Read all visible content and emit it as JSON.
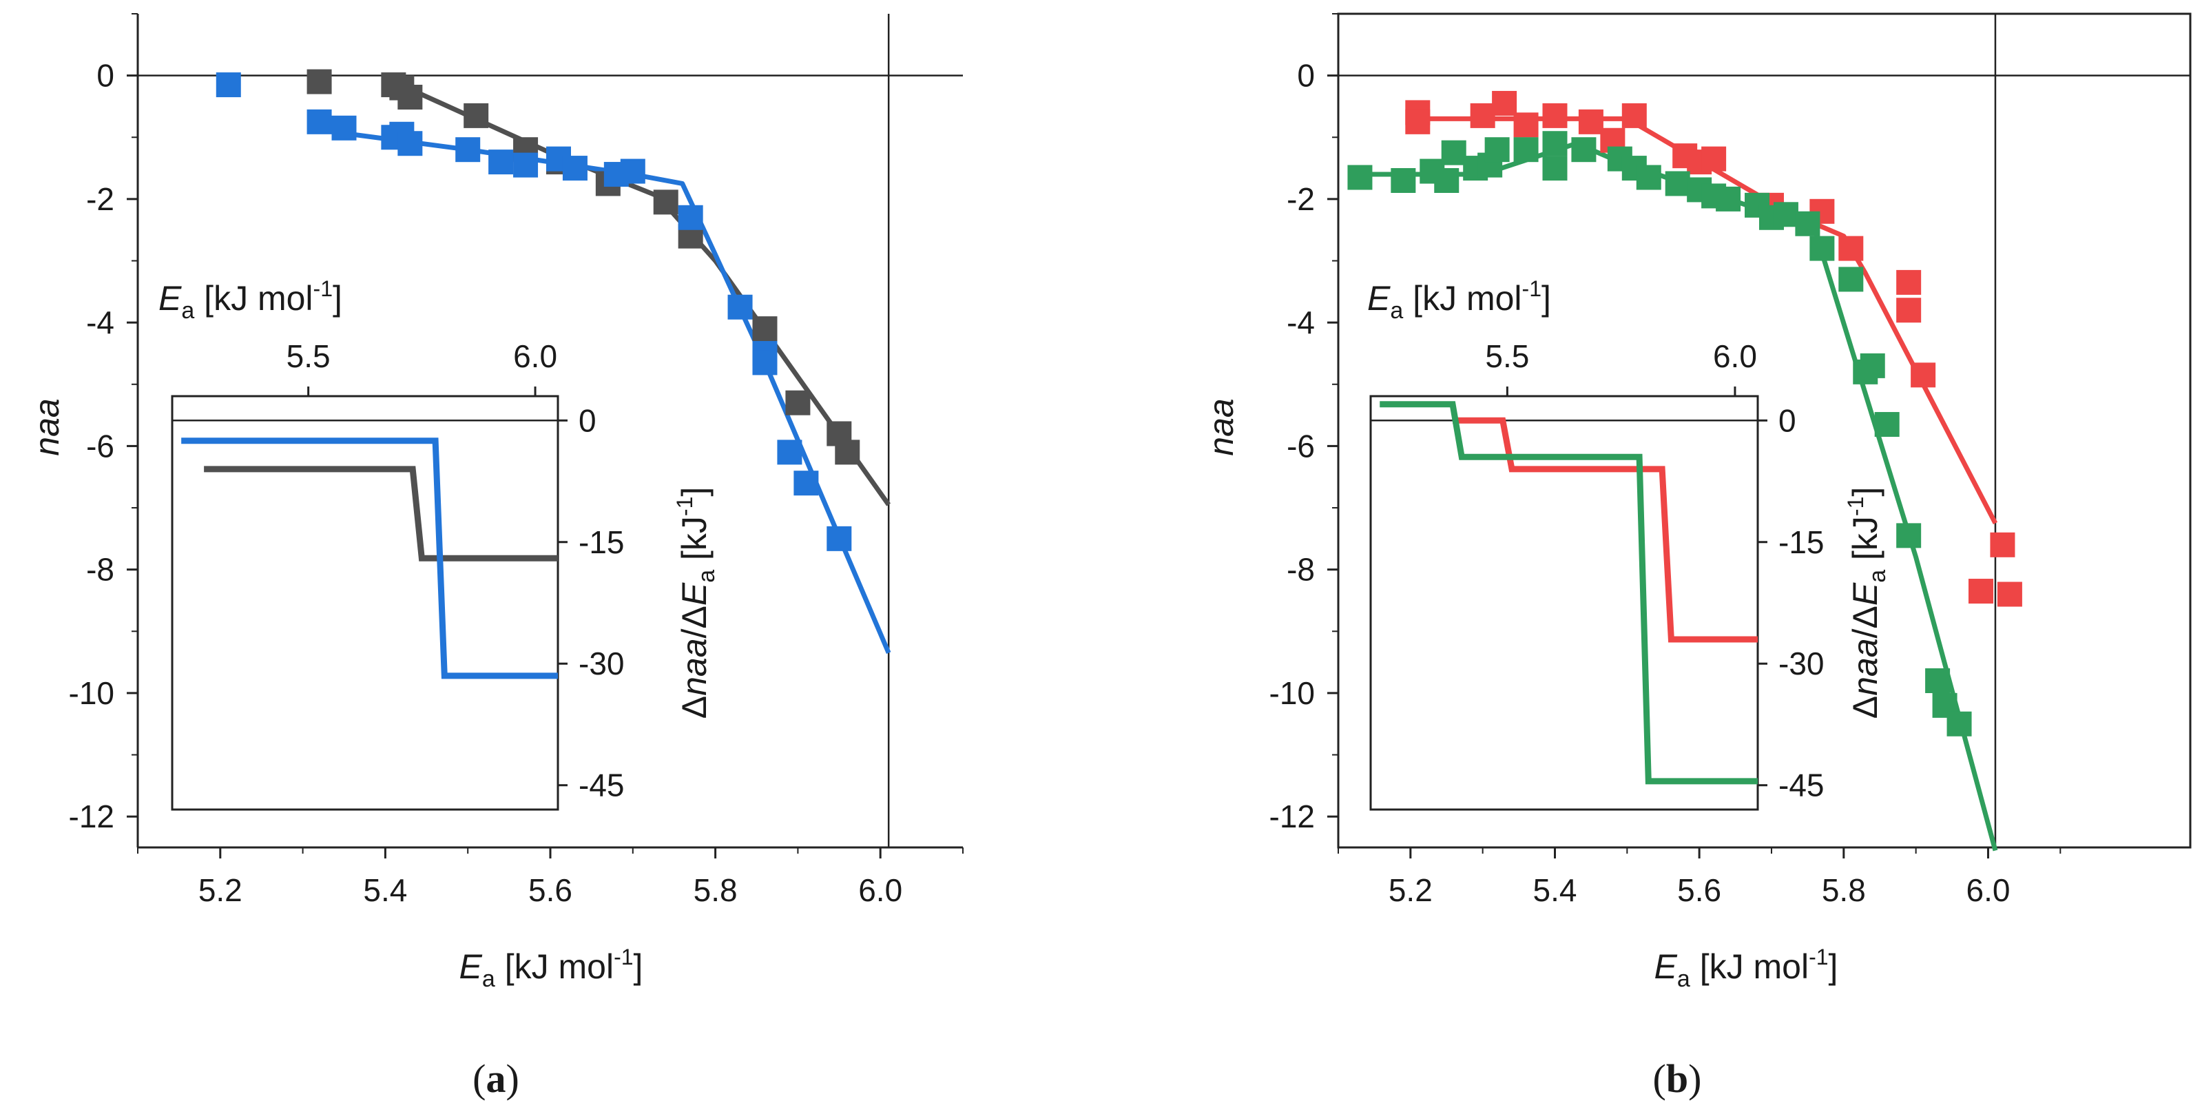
{
  "panels": [
    {
      "caption": "a",
      "chart_data": {
        "type": "scatter",
        "xlabel": "E_a [kJ mol^-1]",
        "ylabel": "naa",
        "xlim": [
          5.1,
          6.1
        ],
        "ylim": [
          -12.5,
          1.0
        ],
        "xticks": [
          5.2,
          5.4,
          5.6,
          5.8,
          6.0
        ],
        "yticks": [
          0,
          -2,
          -4,
          -6,
          -8,
          -10,
          -12
        ],
        "vline": 6.01,
        "hline": 0,
        "series": [
          {
            "name": "dark",
            "color": "#505050",
            "points": [
              [
                5.32,
                -0.1
              ],
              [
                5.41,
                -0.15
              ],
              [
                5.42,
                -0.2
              ],
              [
                5.43,
                -0.35
              ],
              [
                5.51,
                -0.65
              ],
              [
                5.57,
                -1.2
              ],
              [
                5.61,
                -1.4
              ],
              [
                5.67,
                -1.75
              ],
              [
                5.74,
                -2.05
              ],
              [
                5.77,
                -2.6
              ],
              [
                5.86,
                -4.1
              ],
              [
                5.9,
                -5.3
              ],
              [
                5.95,
                -5.8
              ],
              [
                5.96,
                -6.1
              ]
            ],
            "fit": [
              [
                5.41,
                -0.1
              ],
              [
                5.6,
                -1.25
              ],
              [
                5.73,
                -1.95
              ],
              [
                5.8,
                -3.0
              ],
              [
                6.01,
                -6.95
              ]
            ]
          },
          {
            "name": "blue",
            "color": "#2275d8",
            "points": [
              [
                5.21,
                -0.15
              ],
              [
                5.32,
                -0.75
              ],
              [
                5.35,
                -0.85
              ],
              [
                5.41,
                -1.0
              ],
              [
                5.42,
                -0.95
              ],
              [
                5.43,
                -1.1
              ],
              [
                5.5,
                -1.2
              ],
              [
                5.54,
                -1.4
              ],
              [
                5.57,
                -1.45
              ],
              [
                5.61,
                -1.35
              ],
              [
                5.63,
                -1.5
              ],
              [
                5.68,
                -1.6
              ],
              [
                5.7,
                -1.55
              ],
              [
                5.77,
                -2.3
              ],
              [
                5.83,
                -3.75
              ],
              [
                5.86,
                -4.5
              ],
              [
                5.86,
                -4.65
              ],
              [
                5.89,
                -6.1
              ],
              [
                5.91,
                -6.6
              ],
              [
                5.95,
                -7.5
              ]
            ],
            "fit": [
              [
                5.33,
                -0.9
              ],
              [
                5.5,
                -1.2
              ],
              [
                5.7,
                -1.6
              ],
              [
                5.76,
                -1.75
              ],
              [
                5.8,
                -2.9
              ],
              [
                5.86,
                -4.65
              ],
              [
                6.01,
                -9.35
              ]
            ]
          }
        ],
        "inset": {
          "top_label": "E_a [kJ mol^-1]",
          "right_label": "Δnaa/ΔE_a [kJ^-1]",
          "xlim": [
            5.2,
            6.05
          ],
          "ylim": [
            -48,
            3
          ],
          "xticks": [
            5.5,
            6.0
          ],
          "yticks": [
            0,
            -15,
            -30,
            -45
          ],
          "hline": 0,
          "steps": [
            {
              "color": "#505050",
              "points": [
                [
                  5.27,
                  -6
                ],
                [
                  5.73,
                  -6
                ],
                [
                  5.75,
                  -17
                ],
                [
                  6.05,
                  -17
                ]
              ]
            },
            {
              "color": "#2275d8",
              "points": [
                [
                  5.22,
                  -2.5
                ],
                [
                  5.78,
                  -2.5
                ],
                [
                  5.8,
                  -31.5
                ],
                [
                  6.05,
                  -31.5
                ]
              ]
            }
          ]
        }
      }
    },
    {
      "caption": "b",
      "chart_data": {
        "type": "scatter",
        "xlabel": "E_a [kJ mol^-1]",
        "ylabel": "naa",
        "xlim": [
          5.1,
          6.28
        ],
        "ylim": [
          -12.5,
          1.0
        ],
        "xticks": [
          5.2,
          5.4,
          5.6,
          5.8,
          6.0
        ],
        "yticks": [
          0,
          -2,
          -4,
          -6,
          -8,
          -10,
          -12
        ],
        "vline": 6.01,
        "hline": 0,
        "series": [
          {
            "name": "red",
            "color": "#ee4545",
            "points": [
              [
                5.21,
                -0.6
              ],
              [
                5.21,
                -0.75
              ],
              [
                5.3,
                -0.65
              ],
              [
                5.33,
                -0.45
              ],
              [
                5.36,
                -0.8
              ],
              [
                5.4,
                -0.65
              ],
              [
                5.45,
                -0.75
              ],
              [
                5.48,
                -1.05
              ],
              [
                5.51,
                -0.65
              ],
              [
                5.58,
                -1.3
              ],
              [
                5.6,
                -1.4
              ],
              [
                5.62,
                -1.35
              ],
              [
                5.7,
                -2.1
              ],
              [
                5.77,
                -2.2
              ],
              [
                5.81,
                -2.8
              ],
              [
                5.89,
                -3.35
              ],
              [
                5.89,
                -3.8
              ],
              [
                5.91,
                -4.85
              ],
              [
                6.02,
                -7.6
              ],
              [
                5.99,
                -8.35
              ],
              [
                6.03,
                -8.4
              ]
            ],
            "fit": [
              [
                5.21,
                -0.7
              ],
              [
                5.5,
                -0.7
              ],
              [
                5.72,
                -2.2
              ],
              [
                5.8,
                -2.6
              ],
              [
                5.83,
                -3.2
              ],
              [
                6.01,
                -7.25
              ]
            ]
          },
          {
            "name": "green",
            "color": "#2f9e5c",
            "points": [
              [
                5.13,
                -1.65
              ],
              [
                5.19,
                -1.7
              ],
              [
                5.23,
                -1.55
              ],
              [
                5.25,
                -1.7
              ],
              [
                5.26,
                -1.25
              ],
              [
                5.29,
                -1.5
              ],
              [
                5.31,
                -1.45
              ],
              [
                5.32,
                -1.2
              ],
              [
                5.36,
                -1.2
              ],
              [
                5.4,
                -1.1
              ],
              [
                5.4,
                -1.5
              ],
              [
                5.44,
                -1.2
              ],
              [
                5.49,
                -1.35
              ],
              [
                5.51,
                -1.5
              ],
              [
                5.53,
                -1.65
              ],
              [
                5.57,
                -1.75
              ],
              [
                5.6,
                -1.85
              ],
              [
                5.62,
                -1.95
              ],
              [
                5.64,
                -2.0
              ],
              [
                5.68,
                -2.1
              ],
              [
                5.7,
                -2.3
              ],
              [
                5.72,
                -2.25
              ],
              [
                5.75,
                -2.4
              ],
              [
                5.77,
                -2.8
              ],
              [
                5.81,
                -3.3
              ],
              [
                5.83,
                -4.8
              ],
              [
                5.84,
                -4.7
              ],
              [
                5.86,
                -5.65
              ],
              [
                5.89,
                -7.45
              ],
              [
                5.93,
                -9.8
              ],
              [
                5.94,
                -10.2
              ],
              [
                5.96,
                -10.5
              ]
            ],
            "fit": [
              [
                5.13,
                -1.6
              ],
              [
                5.3,
                -1.6
              ],
              [
                5.43,
                -1.1
              ],
              [
                5.48,
                -1.35
              ],
              [
                5.74,
                -2.4
              ],
              [
                5.76,
                -2.5
              ],
              [
                5.9,
                -7.8
              ],
              [
                6.01,
                -12.55
              ]
            ]
          }
        ],
        "inset": {
          "top_label": "E_a [kJ mol^-1]",
          "right_label": "Δnaa/ΔE_a [kJ^-1]",
          "xlim": [
            5.2,
            6.05
          ],
          "ylim": [
            -48,
            3
          ],
          "xticks": [
            5.5,
            6.0
          ],
          "yticks": [
            0,
            -15,
            -30,
            -45
          ],
          "hline": 0,
          "steps": [
            {
              "color": "#ee4545",
              "points": [
                [
                  5.38,
                  0
                ],
                [
                  5.49,
                  0
                ],
                [
                  5.51,
                  -6
                ],
                [
                  5.84,
                  -6
                ],
                [
                  5.86,
                  -27
                ],
                [
                  6.05,
                  -27
                ]
              ]
            },
            {
              "color": "#2f9e5c",
              "points": [
                [
                  5.22,
                  2
                ],
                [
                  5.38,
                  2
                ],
                [
                  5.4,
                  -4.5
                ],
                [
                  5.79,
                  -4.5
                ],
                [
                  5.81,
                  -44.5
                ],
                [
                  6.05,
                  -44.5
                ]
              ]
            }
          ]
        }
      }
    }
  ]
}
